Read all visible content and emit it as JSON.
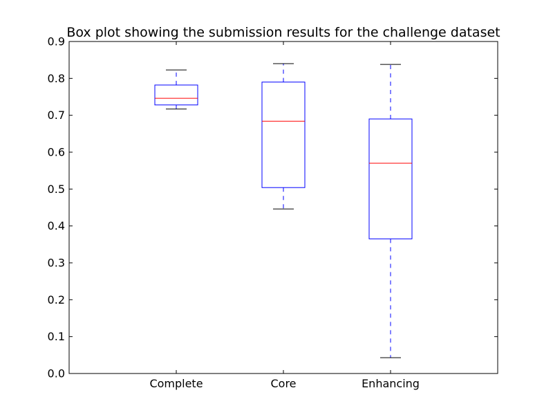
{
  "chart_data": {
    "type": "box",
    "title": "Box plot showing the submission results for the challenge dataset",
    "xlabel": "",
    "ylabel": "",
    "ylim": [
      0.0,
      0.9
    ],
    "yticks": [
      "0.0",
      "0.1",
      "0.2",
      "0.3",
      "0.4",
      "0.5",
      "0.6",
      "0.7",
      "0.8",
      "0.9"
    ],
    "grid": false,
    "categories": [
      "Complete",
      "Core",
      "Enhancing"
    ],
    "boxes": [
      {
        "whisker_low": 0.717,
        "q1": 0.728,
        "median": 0.746,
        "q3": 0.782,
        "whisker_high": 0.823
      },
      {
        "whisker_low": 0.446,
        "q1": 0.504,
        "median": 0.684,
        "q3": 0.79,
        "whisker_high": 0.84
      },
      {
        "whisker_low": 0.043,
        "q1": 0.365,
        "median": 0.57,
        "q3": 0.69,
        "whisker_high": 0.838
      }
    ],
    "colors": {
      "box": "#0000ff",
      "median": "#ff0000",
      "whisker": "#0000ff",
      "cap": "#000000",
      "axes": "#000000"
    }
  }
}
